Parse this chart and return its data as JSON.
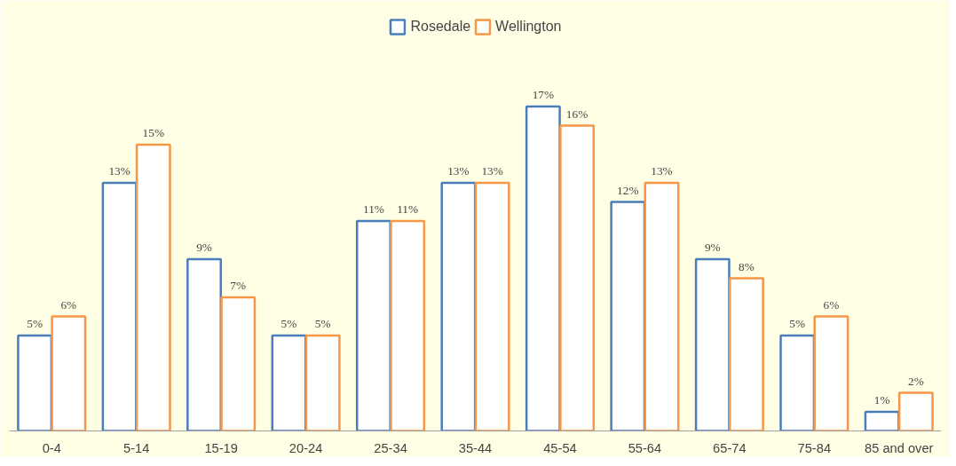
{
  "chart_data": {
    "type": "bar",
    "categories": [
      "0-4",
      "5-14",
      "15-19",
      "20-24",
      "25-34",
      "35-44",
      "45-54",
      "55-64",
      "65-74",
      "75-84",
      "85 and over"
    ],
    "series": [
      {
        "name": "Rosedale",
        "color": "#4a7ebb",
        "values": [
          5,
          13,
          9,
          5,
          11,
          13,
          17,
          12,
          9,
          5,
          1
        ],
        "value_labels": [
          "5%",
          "13%",
          "9%",
          "5%",
          "11%",
          "13%",
          "17%",
          "12%",
          "9%",
          "5%",
          "1%"
        ]
      },
      {
        "name": "Wellington",
        "color": "#f79646",
        "values": [
          6,
          15,
          7,
          5,
          11,
          13,
          16,
          13,
          8,
          6,
          2
        ],
        "value_labels": [
          "6%",
          "15%",
          "7%",
          "5%",
          "11%",
          "13%",
          "16%",
          "13%",
          "8%",
          "6%",
          "2%"
        ]
      }
    ],
    "legend": "top"
  }
}
